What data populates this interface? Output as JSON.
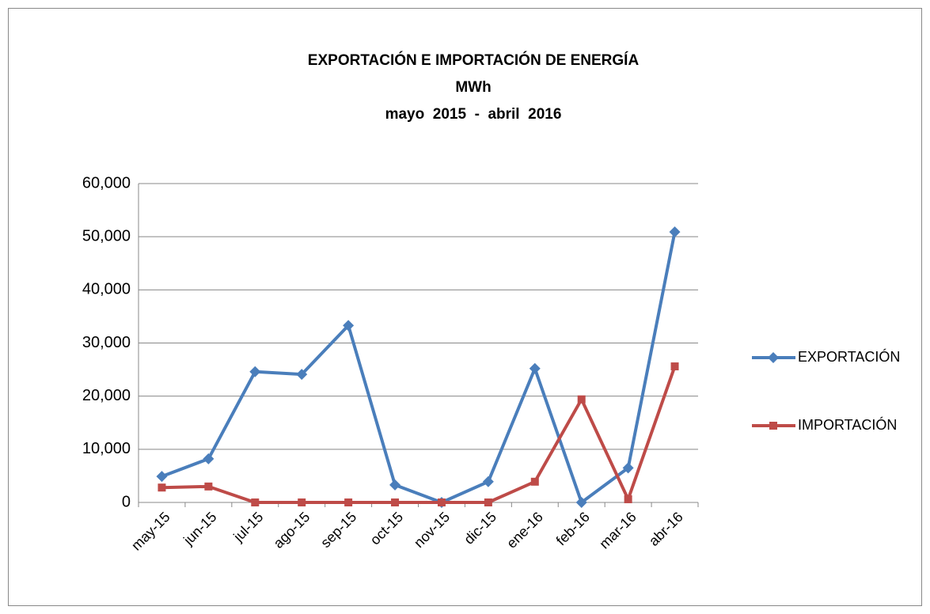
{
  "chart_data": {
    "type": "line",
    "title": "EXPORTACIÓN E IMPORTACIÓN DE ENERGÍA",
    "subtitle": [
      "MWh",
      "mayo  2015  -  abril  2016"
    ],
    "categories": [
      "may-15",
      "jun-15",
      "jul-15",
      "ago-15",
      "sep-15",
      "oct-15",
      "nov-15",
      "dic-15",
      "ene-16",
      "feb-16",
      "mar-16",
      "abr-16"
    ],
    "series": [
      {
        "name": "EXPORTACIÓN",
        "color": "#4a7ebb",
        "marker": "diamond",
        "values": [
          4900,
          8200,
          24600,
          24100,
          33300,
          3300,
          0,
          3900,
          25200,
          0,
          6500,
          50900
        ]
      },
      {
        "name": "IMPORTACIÓN",
        "color": "#be4b48",
        "marker": "square",
        "values": [
          2800,
          3000,
          0,
          0,
          0,
          0,
          0,
          0,
          3900,
          19400,
          600,
          25600
        ]
      }
    ],
    "ylim": [
      0,
      60000
    ],
    "yticks": [
      0,
      {
        "value": 10000,
        "label": "10,000"
      },
      {
        "value": 20000,
        "label": "20,000"
      },
      {
        "value": 30000,
        "label": "30,000"
      },
      {
        "value": 40000,
        "label": "40,000"
      },
      {
        "value": 50000,
        "label": "50,000"
      },
      {
        "value": 60000,
        "label": "60,000"
      }
    ],
    "grid": true,
    "legend": "right"
  }
}
